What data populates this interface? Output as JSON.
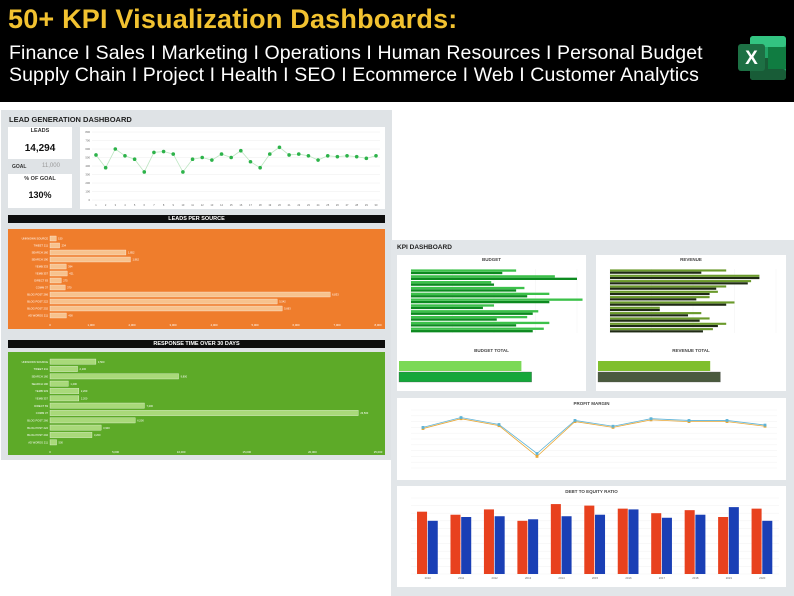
{
  "banner": {
    "title": "50+ KPI Visualization Dashboards:",
    "line1": "Finance I Sales I Marketing I Operations I Human Resources I Personal Budget",
    "line2": "Supply Chain I Project I Health I SEO I Ecommerce I Web I Customer Analytics",
    "logo_letter": "X",
    "excel_green": "#1d7044",
    "title_color": "#f2c230"
  },
  "lead_dashboard": {
    "title": "LEAD GENERATION DASHBOARD",
    "leads_label": "LEADS",
    "leads_value": "14,294",
    "goal_label": "GOAL",
    "goal_value": "11,000",
    "pct_label": "% OF GOAL",
    "pct_value": "130%",
    "leads_per_source_title": "LEADS PER SOURCE",
    "response_time_title": "RESPONSE TIME OVER 30 DAYS",
    "orange": "#ef7d2c",
    "green": "#5daa28"
  },
  "chart_data": [
    {
      "type": "line",
      "x": [
        1,
        2,
        3,
        4,
        5,
        6,
        7,
        8,
        9,
        10,
        11,
        12,
        13,
        14,
        15,
        16,
        17,
        18,
        19,
        20,
        21,
        22,
        23,
        24,
        25,
        26,
        27,
        28,
        29,
        30
      ],
      "values": [
        530,
        380,
        600,
        520,
        480,
        330,
        560,
        570,
        540,
        330,
        480,
        500,
        470,
        540,
        500,
        580,
        450,
        380,
        540,
        620,
        530,
        540,
        520,
        470,
        520,
        510,
        520,
        510,
        490,
        520
      ],
      "ylim": [
        0,
        800
      ],
      "yticks": [
        0,
        100,
        200,
        300,
        400,
        500,
        600,
        700,
        800
      ]
    },
    {
      "type": "bar",
      "categories": [
        "UNKNOWN SOURCE",
        "TWEET 211",
        "SEARCH 160",
        "SEARCH 190",
        "YEMB 333",
        "YEMB 357",
        "DIRECT 83",
        "COMM 37",
        "BLOG POST 266",
        "BLOG POST 222",
        "BLOG POST 202",
        "AD WORDS 211"
      ],
      "values": [
        150,
        234,
        1852,
        1962,
        394,
        421,
        275,
        370,
        6833,
        5542,
        5663,
        400
      ],
      "xlim": [
        0,
        8000
      ],
      "xticks": [
        0,
        1000,
        2000,
        3000,
        4000,
        5000,
        6000,
        7000,
        8000
      ]
    },
    {
      "type": "bar",
      "categories": [
        "UNKNOWN SOURCE",
        "TWEET 211",
        "SEARCH 160",
        "SEARCH 190",
        "YEMB 333",
        "YEMB 357",
        "DIRECT 83",
        "COMM 37",
        "BLOG POST 266",
        "BLOG POST 222",
        "BLOG POST 202",
        "AD WORDS 211"
      ],
      "values": [
        3500,
        2100,
        9800,
        1400,
        2200,
        2200,
        7200,
        23500,
        6500,
        3900,
        3200,
        500
      ],
      "xlim": [
        0,
        25000
      ],
      "xticks": [
        0,
        5000,
        10000,
        15000,
        20000,
        25000
      ]
    },
    {
      "type": "bar",
      "values": [
        [
          380,
          330
        ],
        [
          520,
          600
        ],
        [
          290,
          300
        ],
        [
          410,
          380
        ],
        [
          500,
          420
        ],
        [
          620,
          500
        ],
        [
          300,
          260
        ],
        [
          460,
          440
        ],
        [
          420,
          310
        ],
        [
          500,
          380
        ],
        [
          480,
          440
        ]
      ],
      "xlim": [
        0,
        600
      ]
    },
    {
      "type": "bar",
      "values": [
        [
          700,
          550
        ],
        [
          900,
          900
        ],
        [
          850,
          830
        ],
        [
          700,
          640
        ],
        [
          650,
          600
        ],
        [
          600,
          520
        ],
        [
          750,
          700
        ],
        [
          300,
          300
        ],
        [
          550,
          470
        ],
        [
          600,
          540
        ],
        [
          700,
          650
        ],
        [
          620,
          560
        ]
      ],
      "xlim": [
        0,
        1000
      ]
    },
    {
      "type": "bar",
      "values": [
        360,
        390
      ],
      "xlim": [
        0,
        500
      ]
    },
    {
      "type": "bar",
      "values": [
        330,
        360
      ],
      "xlim": [
        0,
        500
      ]
    },
    {
      "type": "line",
      "series": [
        {
          "values": [
            68,
            85,
            73,
            20,
            80,
            70,
            83,
            80,
            80,
            72
          ]
        },
        {
          "values": [
            70,
            87,
            75,
            25,
            82,
            72,
            85,
            82,
            82,
            74
          ]
        }
      ],
      "ylim": [
        0,
        100
      ]
    },
    {
      "type": "bar",
      "categories": [
        "2010",
        "2011",
        "2012",
        "2013",
        "2014",
        "2015",
        "2016",
        "2017",
        "2018",
        "2019",
        "2020"
      ],
      "series": [
        {
          "values": [
            82,
            78,
            85,
            70,
            92,
            90,
            86,
            80,
            84,
            75,
            86
          ]
        },
        {
          "values": [
            70,
            75,
            76,
            72,
            76,
            78,
            85,
            74,
            78,
            88,
            70
          ]
        }
      ],
      "ylim": [
        0,
        100
      ]
    }
  ],
  "kpi_dashboard": {
    "title": "KPI DASHBOARD",
    "budget_title": "BUDGET",
    "revenue_title": "REVENUE",
    "budget_total_title": "BUDGET TOTAL",
    "revenue_total_title": "REVENUE TOTAL",
    "profit_title": "PROFIT MARGIN",
    "debt_title": "DEBT TO EQUITY RATIO"
  }
}
